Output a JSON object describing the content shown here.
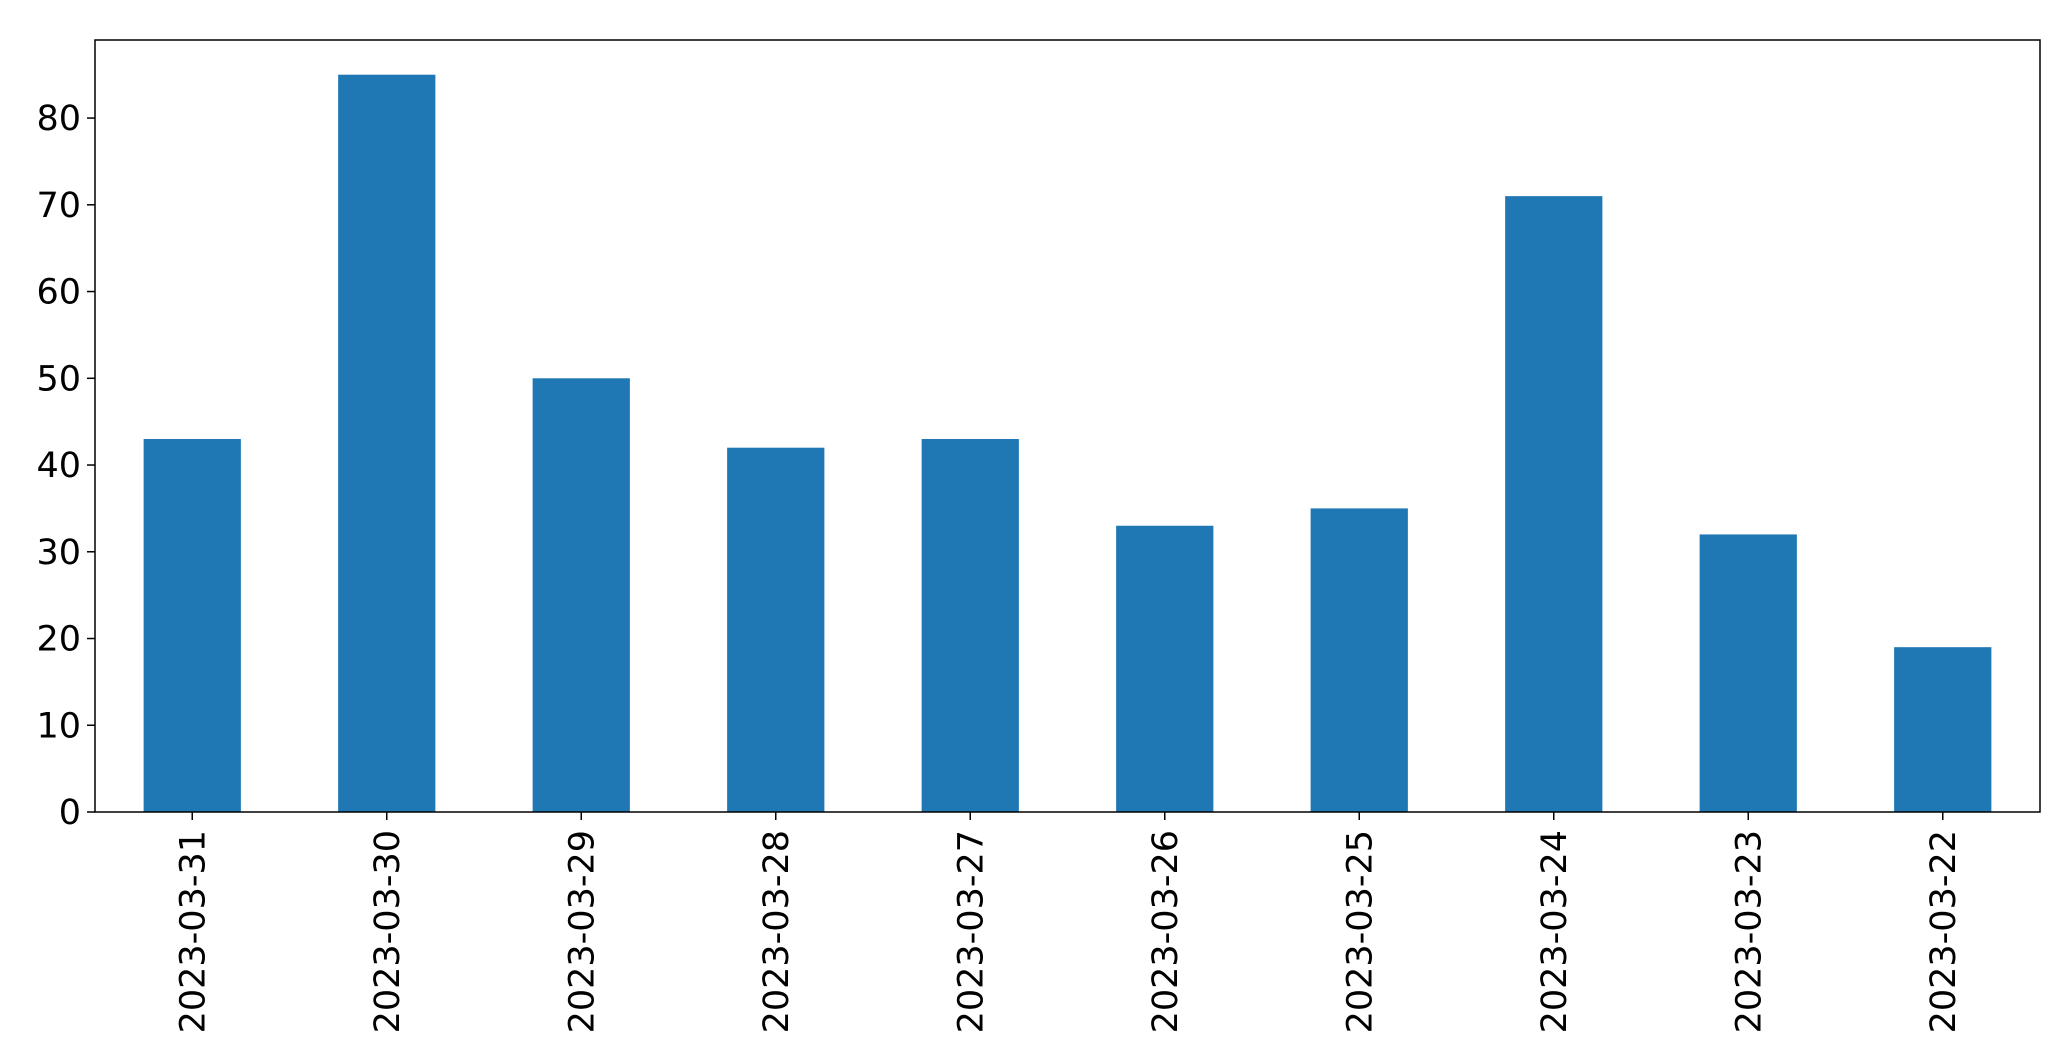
{
  "chart_data": {
    "type": "bar",
    "title": "",
    "xlabel": "",
    "ylabel": "",
    "categories": [
      "2023-03-31",
      "2023-03-30",
      "2023-03-29",
      "2023-03-28",
      "2023-03-27",
      "2023-03-26",
      "2023-03-25",
      "2023-03-24",
      "2023-03-23",
      "2023-03-22"
    ],
    "values": [
      43,
      85,
      50,
      42,
      43,
      33,
      35,
      71,
      32,
      19
    ],
    "ylim": [
      0,
      89
    ],
    "yticks": [
      0,
      10,
      20,
      30,
      40,
      50,
      60,
      70,
      80
    ],
    "grid": false,
    "legend": "none",
    "bar_color": "#1f77b4",
    "axis_color": "#000000"
  }
}
